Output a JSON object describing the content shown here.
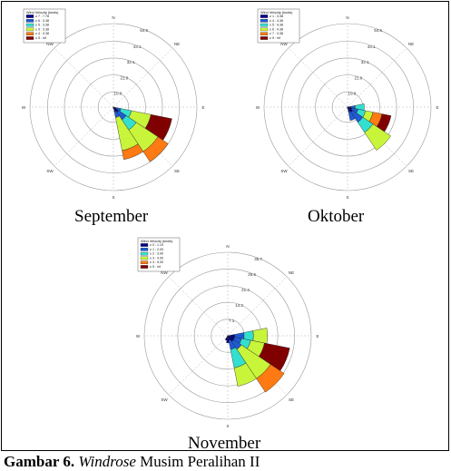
{
  "caption": {
    "label": "Gambar 6.",
    "title_italic": "Windrose",
    "title_rest": " Musim Peralihan II"
  },
  "chart_data": [
    {
      "type": "windrose",
      "month_label": "September",
      "legend_title": "Wind Velocity (knots)",
      "legend_colors": [
        "#00008b",
        "#1e5bd6",
        "#33e0d0",
        "#c8f53a",
        "#ff7a12",
        "#800000"
      ],
      "legend_labels": [
        "≥ 7 : 7.78",
        "≥ 6 : 3.38",
        "≥ 5 : 3.38",
        "≥ 9 : 3.38",
        "≥ 4 : 3.38",
        "≥ 5 : inf"
      ],
      "ring_labels": [
        "10.0",
        "21.0",
        "32.1",
        "43.1",
        "54.6"
      ],
      "ring_values": [
        10.0,
        21.0,
        32.1,
        43.1,
        54.6
      ],
      "rmax": 54.6,
      "compass_labels": {
        "N": "N",
        "NE": "NE",
        "E": "E",
        "SE": "SE",
        "S": "S",
        "SW": "SW",
        "W": "W",
        "NW": "NW"
      },
      "sectors": [
        {
          "direction": 112.5,
          "values": [
            2,
            3,
            7,
            13,
            0,
            14
          ]
        },
        {
          "direction": 135,
          "values": [
            4,
            6,
            8,
            17,
            8,
            0
          ]
        },
        {
          "direction": 157.5,
          "values": [
            3,
            4,
            0,
            22,
            6,
            0
          ]
        },
        {
          "direction": 180,
          "values": [
            1,
            0,
            0,
            0,
            0,
            0
          ]
        }
      ]
    },
    {
      "type": "windrose",
      "month_label": "Oktober",
      "legend_title": "Wind Velocity (knots)",
      "legend_colors": [
        "#00008b",
        "#1e5bd6",
        "#33e0d0",
        "#c8f53a",
        "#ff7a12",
        "#800000"
      ],
      "legend_labels": [
        "≥ 1 : 3.38",
        "≥ 4 : 4.38",
        "≥ 5 : 4.38",
        "≥ 6 : 4.38",
        "≥ 7 : 3.38",
        "≥ 9 : inf"
      ],
      "ring_labels": [
        "10.0",
        "21.0",
        "32.1",
        "43.1",
        "54.6"
      ],
      "ring_values": [
        10.0,
        21.0,
        32.1,
        43.1,
        54.6
      ],
      "rmax": 54.6,
      "compass_labels": {
        "N": "N",
        "NE": "NE",
        "E": "E",
        "SE": "SE",
        "S": "S",
        "SW": "SW",
        "W": "W",
        "NW": "NW"
      },
      "sectors": [
        {
          "direction": 90,
          "values": [
            2,
            3,
            6,
            0,
            0,
            0
          ]
        },
        {
          "direction": 112.5,
          "values": [
            3,
            4,
            5,
            5,
            6,
            6
          ]
        },
        {
          "direction": 135,
          "values": [
            4,
            8,
            8,
            14,
            0,
            0
          ]
        },
        {
          "direction": 157.5,
          "values": [
            3,
            6,
            0,
            0,
            0,
            0
          ]
        },
        {
          "direction": 180,
          "values": [
            1,
            0,
            0,
            0,
            0,
            0
          ]
        }
      ]
    },
    {
      "type": "windrose",
      "month_label": "November",
      "legend_title": "Wind Velocity (knots)",
      "legend_colors": [
        "#00008b",
        "#1e5bd6",
        "#33e0d0",
        "#c8f53a",
        "#ff7a12",
        "#800000"
      ],
      "legend_labels": [
        "≥ 0 : 1.10",
        "≥ 1 : 2.00",
        "≥ 2 : 3.00",
        "≥ 3 : 4.00",
        "≥ 4 : 5.00",
        "≥ 5 : inf"
      ],
      "ring_labels": [
        "7.1",
        "14.3",
        "21.4",
        "28.6",
        "35.7"
      ],
      "ring_values": [
        7.1,
        14.3,
        21.4,
        28.6,
        35.7
      ],
      "rmax": 35.7,
      "compass_labels": {
        "N": "N",
        "NE": "NE",
        "E": "E",
        "SE": "SE",
        "S": "S",
        "SW": "SW",
        "W": "W",
        "NW": "NW"
      },
      "sectors": [
        {
          "direction": 90,
          "values": [
            3,
            4,
            4,
            6,
            0,
            0
          ]
        },
        {
          "direction": 112.5,
          "values": [
            3,
            3,
            4,
            6,
            0,
            11
          ]
        },
        {
          "direction": 135,
          "values": [
            3,
            4,
            0,
            15,
            7,
            0
          ]
        },
        {
          "direction": 157.5,
          "values": [
            2,
            4,
            8,
            8,
            0,
            0
          ]
        },
        {
          "direction": 180,
          "values": [
            3,
            0,
            0,
            0,
            0,
            0
          ]
        },
        {
          "direction": 202.5,
          "values": [
            2,
            0,
            0,
            0,
            0,
            0
          ]
        }
      ]
    }
  ]
}
